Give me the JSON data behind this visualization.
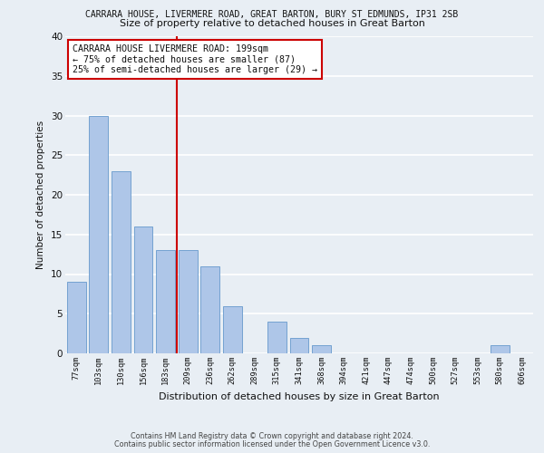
{
  "title_line1": "CARRARA HOUSE, LIVERMERE ROAD, GREAT BARTON, BURY ST EDMUNDS, IP31 2SB",
  "title_line2": "Size of property relative to detached houses in Great Barton",
  "xlabel": "Distribution of detached houses by size in Great Barton",
  "ylabel": "Number of detached properties",
  "categories": [
    "77sqm",
    "103sqm",
    "130sqm",
    "156sqm",
    "183sqm",
    "209sqm",
    "236sqm",
    "262sqm",
    "289sqm",
    "315sqm",
    "341sqm",
    "368sqm",
    "394sqm",
    "421sqm",
    "447sqm",
    "474sqm",
    "500sqm",
    "527sqm",
    "553sqm",
    "580sqm",
    "606sqm"
  ],
  "values": [
    9,
    30,
    23,
    16,
    13,
    13,
    11,
    6,
    0,
    4,
    2,
    1,
    0,
    0,
    0,
    0,
    0,
    0,
    0,
    1,
    0
  ],
  "bar_color": "#aec6e8",
  "bar_edgecolor": "#6699cc",
  "vline_color": "#cc0000",
  "annotation_text": "CARRARA HOUSE LIVERMERE ROAD: 199sqm\n← 75% of detached houses are smaller (87)\n25% of semi-detached houses are larger (29) →",
  "annotation_box_color": "#ffffff",
  "annotation_box_edgecolor": "#cc0000",
  "ylim": [
    0,
    40
  ],
  "yticks": [
    0,
    5,
    10,
    15,
    20,
    25,
    30,
    35,
    40
  ],
  "background_color": "#e8eef4",
  "grid_color": "#ffffff",
  "footer_line1": "Contains HM Land Registry data © Crown copyright and database right 2024.",
  "footer_line2": "Contains public sector information licensed under the Open Government Licence v3.0."
}
